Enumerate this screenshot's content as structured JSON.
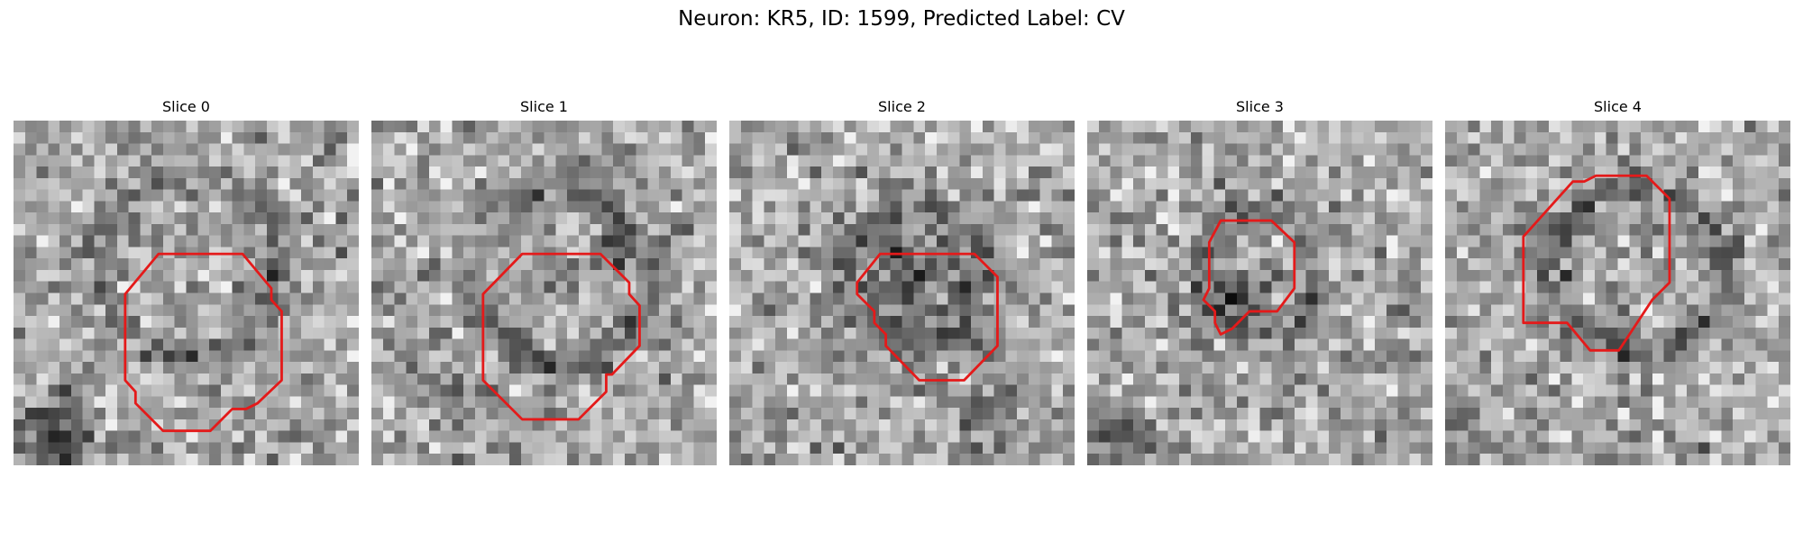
{
  "figure": {
    "title": "Neuron: KR5, ID: 1599, Predicted Label: CV"
  },
  "colors": {
    "background": "#ffffff",
    "contour": "#e41a1a",
    "colormap": "grayscale"
  },
  "panels": [
    {
      "title": "Slice 0",
      "seed": 17,
      "ring": {
        "cx": 15.2,
        "cy": 12.5,
        "r": 7.8,
        "strength": 55
      },
      "dark_blobs": [
        {
          "cx": 4.0,
          "cy": 27.5,
          "rx": 2.5,
          "ry": 3.5,
          "strength": 110
        }
      ],
      "contour": [
        [
          12.6,
          11.6
        ],
        [
          19.9,
          11.6
        ],
        [
          22.4,
          14.6
        ],
        [
          22.4,
          15.6
        ],
        [
          23.3,
          16.6
        ],
        [
          23.3,
          22.6
        ],
        [
          21.2,
          24.6
        ],
        [
          20.2,
          25.1
        ],
        [
          19.0,
          25.1
        ],
        [
          17.1,
          27.0
        ],
        [
          13.0,
          27.0
        ],
        [
          10.6,
          24.6
        ],
        [
          10.6,
          23.6
        ],
        [
          9.7,
          22.6
        ],
        [
          9.7,
          15.1
        ]
      ]
    },
    {
      "title": "Slice 1",
      "seed": 29,
      "ring": {
        "cx": 16.8,
        "cy": 13.8,
        "r": 7.4,
        "strength": 65
      },
      "dark_blobs": [
        {
          "cx": 21.5,
          "cy": 11.0,
          "rx": 1.5,
          "ry": 1.5,
          "strength": 90
        },
        {
          "cx": 6.0,
          "cy": 23.5,
          "rx": 3.5,
          "ry": 1.8,
          "strength": 55
        }
      ],
      "contour": [
        [
          13.1,
          11.6
        ],
        [
          19.9,
          11.6
        ],
        [
          22.4,
          14.1
        ],
        [
          22.4,
          15.1
        ],
        [
          23.3,
          16.1
        ],
        [
          23.3,
          19.6
        ],
        [
          20.9,
          22.1
        ],
        [
          20.4,
          22.1
        ],
        [
          20.4,
          23.6
        ],
        [
          18.0,
          26.0
        ],
        [
          13.1,
          26.0
        ],
        [
          9.7,
          22.6
        ],
        [
          9.7,
          15.1
        ]
      ]
    },
    {
      "title": "Slice 2",
      "seed": 43,
      "ring": {
        "cx": 16.0,
        "cy": 13.6,
        "r": 5.8,
        "strength": 40
      },
      "dark_blobs": [
        {
          "cx": 16.0,
          "cy": 14.4,
          "rx": 5.2,
          "ry": 4.8,
          "strength": 70
        },
        {
          "cx": 22.5,
          "cy": 26.0,
          "rx": 2.5,
          "ry": 3.0,
          "strength": 60
        }
      ],
      "contour": [
        [
          13.1,
          11.6
        ],
        [
          21.3,
          11.6
        ],
        [
          23.3,
          13.6
        ],
        [
          23.3,
          19.6
        ],
        [
          20.4,
          22.6
        ],
        [
          16.5,
          22.6
        ],
        [
          13.6,
          19.6
        ],
        [
          13.6,
          18.6
        ],
        [
          12.6,
          17.6
        ],
        [
          12.6,
          16.6
        ],
        [
          11.1,
          15.1
        ],
        [
          11.1,
          14.1
        ]
      ]
    },
    {
      "title": "Slice 3",
      "seed": 61,
      "ring": {
        "cx": 14.6,
        "cy": 13.2,
        "r": 5.2,
        "strength": 45
      },
      "dark_blobs": [
        {
          "cx": 13.0,
          "cy": 15.5,
          "rx": 3.2,
          "ry": 2.6,
          "strength": 75
        },
        {
          "cx": 3.0,
          "cy": 27.5,
          "rx": 3.5,
          "ry": 1.8,
          "strength": 80
        },
        {
          "cx": 24.5,
          "cy": 21.0,
          "rx": 3.0,
          "ry": 1.5,
          "strength": 55
        }
      ],
      "contour": [
        [
          11.6,
          8.7
        ],
        [
          16.0,
          8.7
        ],
        [
          18.0,
          10.6
        ],
        [
          18.0,
          14.6
        ],
        [
          16.5,
          16.6
        ],
        [
          14.1,
          16.6
        ],
        [
          12.6,
          18.1
        ],
        [
          11.6,
          18.6
        ],
        [
          11.1,
          17.6
        ],
        [
          11.1,
          16.6
        ],
        [
          10.1,
          15.6
        ],
        [
          10.6,
          14.6
        ],
        [
          10.6,
          10.6
        ]
      ]
    },
    {
      "title": "Slice 4",
      "seed": 83,
      "ring": {
        "cx": 16.8,
        "cy": 13.0,
        "r": 7.2,
        "strength": 65
      },
      "dark_blobs": [
        {
          "cx": 2.0,
          "cy": 26.5,
          "rx": 1.5,
          "ry": 1.5,
          "strength": 80
        }
      ],
      "contour": [
        [
          11.1,
          5.3
        ],
        [
          12.1,
          5.3
        ],
        [
          13.1,
          4.8
        ],
        [
          17.5,
          4.8
        ],
        [
          19.5,
          6.8
        ],
        [
          19.5,
          14.1
        ],
        [
          18.0,
          15.6
        ],
        [
          15.1,
          20.0
        ],
        [
          12.6,
          20.0
        ],
        [
          10.6,
          17.6
        ],
        [
          6.8,
          17.6
        ],
        [
          6.8,
          10.1
        ]
      ]
    }
  ]
}
